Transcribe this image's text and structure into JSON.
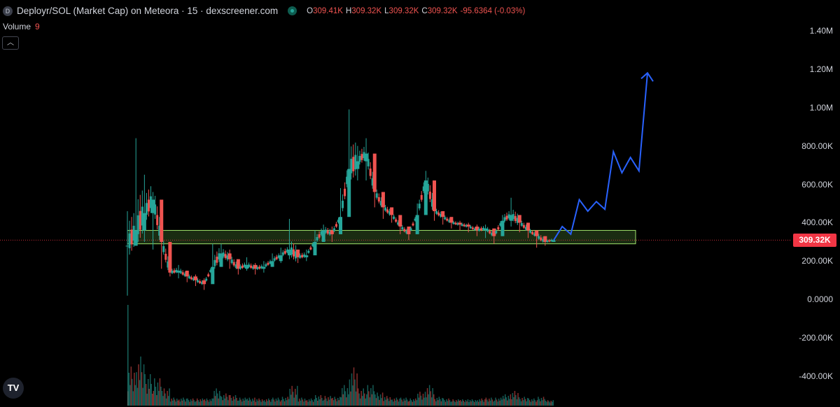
{
  "header": {
    "symbol_badge": "D",
    "title": "Deployr/SOL (Market Cap) on Meteora · 15 · dexscreener.com",
    "ohlc": {
      "o_label": "O",
      "o_value": "309.41K",
      "h_label": "H",
      "h_value": "309.32K",
      "l_label": "L",
      "l_value": "309.32K",
      "c_label": "C",
      "c_value": "309.32K",
      "change": "-95.6364 (-0.03%)"
    }
  },
  "volume": {
    "label": "Volume",
    "value": "9"
  },
  "collapse_icon": "chevron-up-icon",
  "last_price_label": "309.32K",
  "colors": {
    "up": "#26a69a",
    "down": "#ef5350",
    "projection": "#2962ff",
    "zone": "#9fe36b",
    "last_price": "#f23645"
  },
  "chart_data": {
    "type": "line",
    "title": "Deployr/SOL (Market Cap) on Meteora · 15 · dexscreener.com",
    "interval": "15",
    "y_ticks": [
      "1.40M",
      "1.20M",
      "1.00M",
      "800.00K",
      "600.00K",
      "400.00K",
      "200.00K",
      "0.0000",
      "-200.00K",
      "-400.00K"
    ],
    "y_tick_values": [
      1400000,
      1200000,
      1000000,
      800000,
      600000,
      400000,
      200000,
      0,
      -200000,
      -400000
    ],
    "ylim": [
      -560000,
      1560000
    ],
    "series": [
      {
        "type": "candlestick-trace",
        "x": [
          0,
          2,
          4,
          6,
          8,
          10,
          12,
          14,
          16,
          18,
          20,
          22,
          24,
          26,
          28,
          30,
          32,
          34,
          36,
          38,
          40,
          42,
          44,
          46,
          48,
          50,
          52,
          54,
          56,
          58,
          60,
          62,
          64,
          66,
          68,
          70,
          72,
          74,
          76,
          78,
          80,
          82,
          84,
          86,
          88,
          90,
          92,
          94,
          96,
          98,
          100
        ],
        "values": [
          280000,
          360000,
          450000,
          520000,
          300000,
          140000,
          150000,
          120000,
          100000,
          80000,
          170000,
          240000,
          210000,
          160000,
          180000,
          160000,
          170000,
          200000,
          230000,
          260000,
          220000,
          230000,
          300000,
          360000,
          340000,
          430000,
          680000,
          720000,
          760000,
          560000,
          480000,
          440000,
          380000,
          340000,
          440000,
          620000,
          460000,
          430000,
          400000,
          390000,
          380000,
          360000,
          370000,
          330000,
          410000,
          440000,
          400000,
          360000,
          330000,
          300000,
          309320
        ],
        "highs": [
          460000,
          840000,
          650000,
          560000,
          340000,
          190000,
          180000,
          150000,
          130000,
          110000,
          290000,
          290000,
          260000,
          200000,
          220000,
          190000,
          200000,
          240000,
          270000,
          420000,
          260000,
          260000,
          360000,
          390000,
          380000,
          580000,
          990000,
          800000,
          840000,
          610000,
          510000,
          470000,
          410000,
          370000,
          500000,
          670000,
          490000,
          450000,
          420000,
          410000,
          400000,
          390000,
          390000,
          360000,
          440000,
          530000,
          430000,
          380000,
          350000,
          320000,
          309410
        ],
        "lows": [
          20000,
          280000,
          300000,
          260000,
          160000,
          120000,
          110000,
          90000,
          70000,
          50000,
          110000,
          170000,
          160000,
          130000,
          150000,
          130000,
          140000,
          170000,
          190000,
          210000,
          190000,
          200000,
          260000,
          300000,
          300000,
          360000,
          560000,
          620000,
          620000,
          480000,
          420000,
          400000,
          340000,
          310000,
          360000,
          450000,
          410000,
          390000,
          370000,
          360000,
          350000,
          330000,
          320000,
          290000,
          330000,
          380000,
          350000,
          320000,
          270000,
          280000,
          309320
        ]
      },
      {
        "type": "projection-line",
        "x": [
          100,
          102,
          104,
          106,
          108,
          110,
          112,
          114,
          116,
          118,
          120,
          122
        ],
        "values": [
          309320,
          380000,
          340000,
          520000,
          460000,
          510000,
          470000,
          770000,
          660000,
          740000,
          670000,
          1180000
        ]
      }
    ],
    "zones": [
      {
        "from": 290000,
        "to": 360000
      }
    ],
    "last_price": 309320,
    "grid": false,
    "legend": "top-left"
  }
}
